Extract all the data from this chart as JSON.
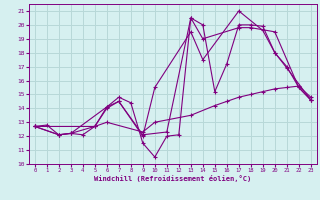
{
  "xlabel": "Windchill (Refroidissement éolien,°C)",
  "background_color": "#d6f0f0",
  "grid_color": "#b8d8d8",
  "line_color": "#800080",
  "xlim": [
    -0.5,
    23.5
  ],
  "ylim": [
    10,
    21.5
  ],
  "xticks": [
    0,
    1,
    2,
    3,
    4,
    5,
    6,
    7,
    8,
    9,
    10,
    11,
    12,
    13,
    14,
    15,
    16,
    17,
    18,
    19,
    20,
    21,
    22,
    23
  ],
  "yticks": [
    10,
    11,
    12,
    13,
    14,
    15,
    16,
    17,
    18,
    19,
    20,
    21
  ],
  "series": [
    {
      "x": [
        0,
        1,
        2,
        3,
        4,
        5,
        6,
        7,
        8,
        9,
        10,
        11,
        12,
        13,
        14,
        15,
        16,
        17,
        18,
        19,
        20,
        21,
        22,
        23
      ],
      "y": [
        12.7,
        12.8,
        12.1,
        12.2,
        12.1,
        12.7,
        14.1,
        14.8,
        14.4,
        11.5,
        10.5,
        12.0,
        12.1,
        20.5,
        20.0,
        15.2,
        17.2,
        20.0,
        20.0,
        19.9,
        18.0,
        17.0,
        15.5,
        14.6
      ]
    },
    {
      "x": [
        0,
        2,
        3,
        5,
        6,
        9,
        10,
        13,
        15,
        16,
        17,
        18,
        19,
        20,
        21,
        22,
        23
      ],
      "y": [
        12.7,
        12.1,
        12.2,
        12.7,
        13.0,
        12.3,
        13.0,
        13.5,
        14.2,
        14.5,
        14.8,
        15.0,
        15.2,
        15.4,
        15.5,
        15.6,
        14.8
      ]
    },
    {
      "x": [
        0,
        2,
        3,
        6,
        7,
        9,
        10,
        13,
        14,
        17,
        19,
        20,
        21,
        23
      ],
      "y": [
        12.7,
        12.1,
        12.2,
        14.1,
        14.5,
        12.0,
        15.5,
        19.5,
        17.5,
        21.0,
        19.6,
        18.0,
        16.9,
        14.6
      ]
    },
    {
      "x": [
        0,
        5,
        6,
        7,
        9,
        11,
        13,
        14,
        17,
        18,
        20,
        22,
        23
      ],
      "y": [
        12.7,
        12.7,
        14.0,
        14.5,
        12.1,
        12.3,
        20.5,
        19.0,
        19.8,
        19.8,
        19.5,
        15.5,
        14.6
      ]
    }
  ]
}
